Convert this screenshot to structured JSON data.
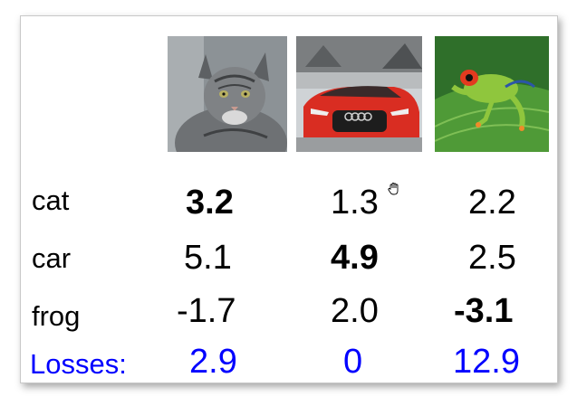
{
  "images": [
    {
      "name": "cat-image",
      "subject": "tabby cat"
    },
    {
      "name": "car-image",
      "subject": "red convertible car"
    },
    {
      "name": "frog-image",
      "subject": "green tree frog"
    }
  ],
  "rows": [
    {
      "label": "cat",
      "scores": [
        "3.2",
        "1.3",
        "2.2"
      ],
      "bold_index": 0
    },
    {
      "label": "car",
      "scores": [
        "5.1",
        "4.9",
        "2.5"
      ],
      "bold_index": 1
    },
    {
      "label": "frog",
      "scores": [
        "-1.7",
        "2.0",
        "-3.1"
      ],
      "bold_index": 2
    }
  ],
  "losses": {
    "label": "Losses:",
    "values": [
      "2.9",
      "0",
      "12.9"
    ]
  },
  "colors": {
    "text": "#000000",
    "loss_text": "#0000ff"
  }
}
